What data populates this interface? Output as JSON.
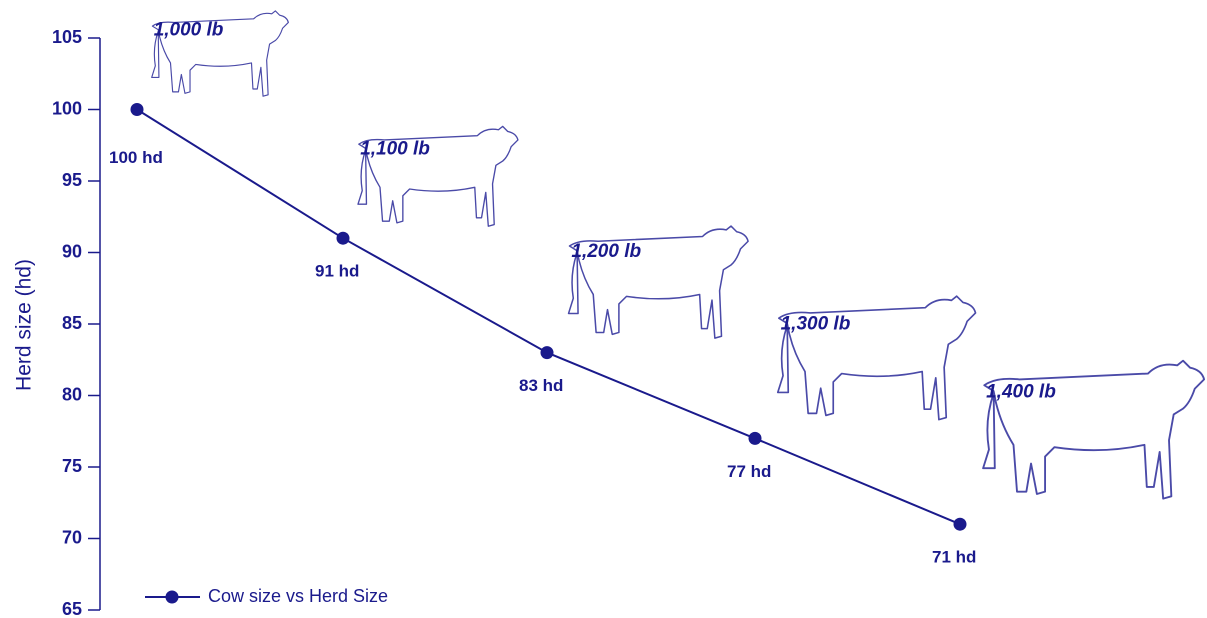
{
  "chart_data": {
    "type": "line",
    "y_label": "Herd size (hd)",
    "categories": [
      "1,000 lb",
      "1,100 lb",
      "1,200 lb",
      "1,300 lb",
      "1,400 lb"
    ],
    "series": [
      {
        "name": "Cow size vs Herd Size",
        "color": "#1a1a8c",
        "values": [
          100,
          91,
          83,
          77,
          71
        ],
        "value_labels": [
          "100 hd",
          "91 hd",
          "83 hd",
          "77 hd",
          "71 hd"
        ]
      }
    ],
    "ylim": [
      65,
      105
    ],
    "yticks": [
      65,
      70,
      75,
      80,
      85,
      90,
      95,
      100,
      105
    ],
    "legend": "bottom-left"
  }
}
